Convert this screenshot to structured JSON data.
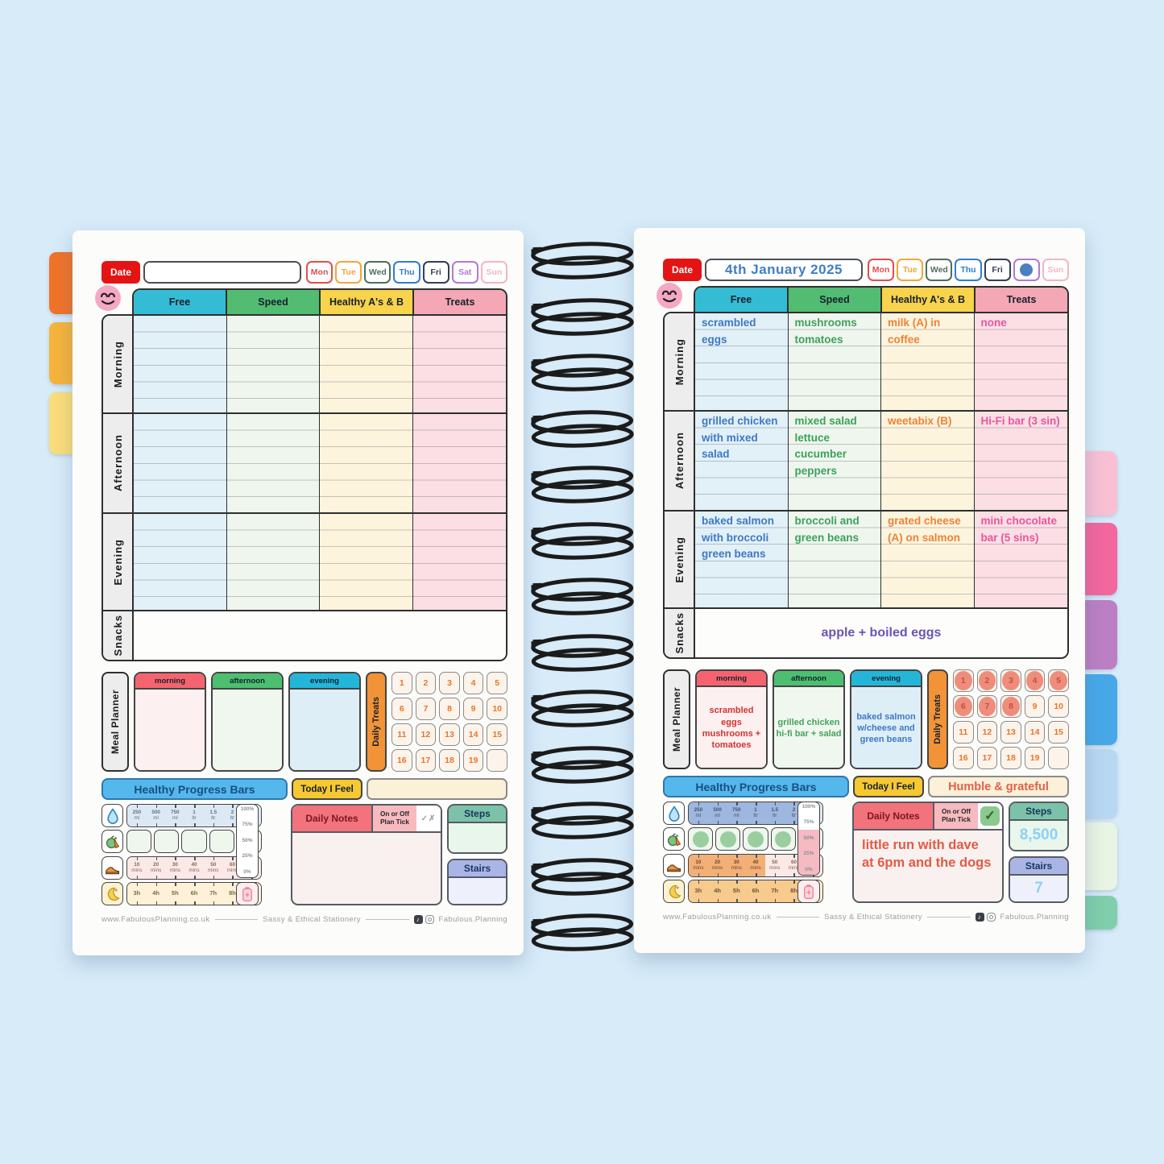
{
  "canvas": {
    "background": "#d7ebf9"
  },
  "shared": {
    "date_label": "Date",
    "days": [
      {
        "label": "Mon",
        "color": "#e0504c"
      },
      {
        "label": "Tue",
        "color": "#f0a73c"
      },
      {
        "label": "Wed",
        "color": "#4f6e60"
      },
      {
        "label": "Thu",
        "color": "#2e7ed2"
      },
      {
        "label": "Fri",
        "color": "#333f55"
      },
      {
        "label": "Sat",
        "color": "#b478d2"
      },
      {
        "label": "Sun",
        "color": "#f2b6c2"
      }
    ],
    "columns": [
      {
        "label": "Free",
        "header_color": "#35bcd5"
      },
      {
        "label": "Speed",
        "header_color": "#52bd72"
      },
      {
        "label": "Healthy A's & B",
        "header_color": "#f8d34c"
      },
      {
        "label": "Treats",
        "header_color": "#f4a7b4"
      }
    ],
    "row_labels": [
      "Morning",
      "Afternoon",
      "Evening",
      "Snacks"
    ],
    "meal_planner_label": "Meal Planner",
    "meal_slot_labels": [
      "morning",
      "afternoon",
      "evening"
    ],
    "daily_treats_label": "Daily Treats",
    "treat_numbers": [
      "1",
      "2",
      "3",
      "4",
      "5",
      "6",
      "7",
      "8",
      "9",
      "10",
      "11",
      "12",
      "13",
      "14",
      "15",
      "16",
      "17",
      "18",
      "19",
      ""
    ],
    "progress_header": "Healthy Progress Bars",
    "today_i_feel_label": "Today I Feel",
    "daily_notes_label": "Daily Notes",
    "plan_tick_label_1": "On or Off",
    "plan_tick_label_2": "Plan Tick",
    "tick_placeholder": "✓✗",
    "check_glyph": "✓",
    "steps_label": "Steps",
    "stairs_label": "Stairs",
    "percent_labels": [
      "100%",
      "75%",
      "50%",
      "25%",
      "0%"
    ],
    "water_scale": [
      [
        "250",
        "ml"
      ],
      [
        "500",
        "ml"
      ],
      [
        "750",
        "ml"
      ],
      [
        "1",
        "ltr"
      ],
      [
        "1.5",
        "ltr"
      ],
      [
        "2",
        "ltr"
      ],
      [
        "+2.5",
        "ltr"
      ]
    ],
    "exercise_scale": [
      [
        "10",
        "mins"
      ],
      [
        "20",
        "mins"
      ],
      [
        "30",
        "mins"
      ],
      [
        "40",
        "mins"
      ],
      [
        "50",
        "mins"
      ],
      [
        "60",
        "mins"
      ],
      [
        "+70",
        "mins"
      ]
    ],
    "sleep_scale": [
      "3h",
      "4h",
      "5h",
      "6h",
      "7h",
      "8h",
      "+9h"
    ],
    "fruit_box_count": 5,
    "footer": {
      "url": "www.FabulousPlanning.co.uk",
      "tagline": "Sassy & Ethical Stationery",
      "social": "Fabulous.Planning"
    },
    "notebook_tabs": {
      "left": [
        "#f07328",
        "#f6b43c",
        "#fade7a"
      ],
      "right": [
        "#f9c0d4",
        "#f2679e",
        "#bc7fc4",
        "#47a8e8",
        "#b8d8f2",
        "#e8f4e4",
        "#7fcfac"
      ]
    }
  },
  "left_page": {
    "date_value": "",
    "marked_day": null,
    "meals": {
      "morning": {
        "free": "",
        "speed": "",
        "healthy": "",
        "treats": ""
      },
      "afternoon": {
        "free": "",
        "speed": "",
        "healthy": "",
        "treats": ""
      },
      "evening": {
        "free": "",
        "speed": "",
        "healthy": "",
        "treats": ""
      },
      "snacks": ""
    },
    "planner": {
      "morning": "",
      "afternoon": "",
      "evening": ""
    },
    "today_i_feel": "",
    "notes": "",
    "steps": "",
    "stairs": "",
    "plan_tick": "empty",
    "fills": {
      "water": 0,
      "fruit": 0,
      "exercise": 0,
      "sleep": 0,
      "percent": 0,
      "treats": 0
    }
  },
  "right_page": {
    "date_value": "4th January 2025",
    "marked_day": "Sat",
    "meals": {
      "morning": {
        "free": "scrambled eggs",
        "speed": "mushrooms tomatoes",
        "healthy": "milk (A) in coffee",
        "treats": "none"
      },
      "afternoon": {
        "free": "grilled chicken with mixed salad",
        "speed": "mixed salad lettuce cucumber peppers",
        "healthy": "weetabix (B)",
        "treats": "Hi-Fi bar (3 sin)"
      },
      "evening": {
        "free": "baked salmon with broccoli green beans",
        "speed": "broccoli and green beans",
        "healthy": "grated cheese (A) on salmon",
        "treats": "mini chocolate bar (5 sins)"
      },
      "snacks": "apple + boiled eggs"
    },
    "planner": {
      "morning": "scrambled eggs mushrooms + tomatoes",
      "afternoon": "grilled chicken hi-fi bar + salad",
      "evening": "baked salmon w/cheese and green beans"
    },
    "today_i_feel": "Humble & grateful",
    "notes": "little run with dave at 6pm and the dogs",
    "steps": "8,500",
    "stairs": "7",
    "plan_tick": "check",
    "fills": {
      "water": 6,
      "fruit": 4,
      "exercise": 4,
      "sleep": 6,
      "percent": 62,
      "treats": 8
    }
  }
}
